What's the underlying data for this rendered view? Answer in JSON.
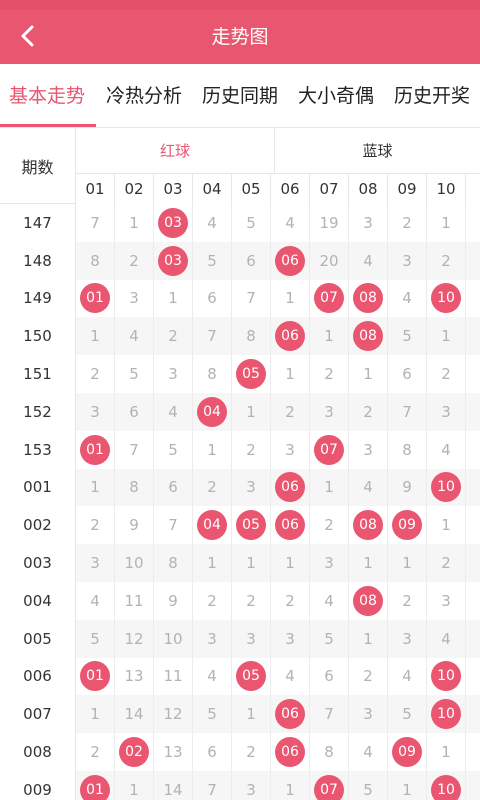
{
  "header": {
    "title": "走势图",
    "back_icon": "chevron-left-icon",
    "color": "#e8566f"
  },
  "tabs": [
    {
      "label": "基本走势",
      "active": true
    },
    {
      "label": "冷热分析",
      "active": false
    },
    {
      "label": "历史同期",
      "active": false
    },
    {
      "label": "大小奇偶",
      "active": false
    },
    {
      "label": "历史开奖",
      "active": false
    }
  ],
  "table": {
    "period_header": "期数",
    "red_group": "红球",
    "blue_group": "蓝球",
    "columns": [
      "01",
      "02",
      "03",
      "04",
      "05",
      "06",
      "07",
      "08",
      "09",
      "10"
    ],
    "rows": [
      {
        "period": "147",
        "cells": [
          "7",
          "1",
          "03",
          "4",
          "5",
          "4",
          "19",
          "3",
          "2",
          "1"
        ],
        "hits": [
          2
        ]
      },
      {
        "period": "148",
        "cells": [
          "8",
          "2",
          "03",
          "5",
          "6",
          "06",
          "20",
          "4",
          "3",
          "2"
        ],
        "hits": [
          2,
          5
        ]
      },
      {
        "period": "149",
        "cells": [
          "01",
          "3",
          "1",
          "6",
          "7",
          "1",
          "07",
          "08",
          "4",
          "10"
        ],
        "hits": [
          0,
          6,
          7,
          9
        ]
      },
      {
        "period": "150",
        "cells": [
          "1",
          "4",
          "2",
          "7",
          "8",
          "06",
          "1",
          "08",
          "5",
          "1"
        ],
        "hits": [
          5,
          7
        ]
      },
      {
        "period": "151",
        "cells": [
          "2",
          "5",
          "3",
          "8",
          "05",
          "1",
          "2",
          "1",
          "6",
          "2"
        ],
        "hits": [
          4
        ]
      },
      {
        "period": "152",
        "cells": [
          "3",
          "6",
          "4",
          "04",
          "1",
          "2",
          "3",
          "2",
          "7",
          "3"
        ],
        "hits": [
          3
        ]
      },
      {
        "period": "153",
        "cells": [
          "01",
          "7",
          "5",
          "1",
          "2",
          "3",
          "07",
          "3",
          "8",
          "4"
        ],
        "hits": [
          0,
          6
        ]
      },
      {
        "period": "001",
        "cells": [
          "1",
          "8",
          "6",
          "2",
          "3",
          "06",
          "1",
          "4",
          "9",
          "10"
        ],
        "hits": [
          5,
          9
        ]
      },
      {
        "period": "002",
        "cells": [
          "2",
          "9",
          "7",
          "04",
          "05",
          "06",
          "2",
          "08",
          "09",
          "1"
        ],
        "hits": [
          3,
          4,
          5,
          7,
          8
        ]
      },
      {
        "period": "003",
        "cells": [
          "3",
          "10",
          "8",
          "1",
          "1",
          "1",
          "3",
          "1",
          "1",
          "2"
        ],
        "hits": []
      },
      {
        "period": "004",
        "cells": [
          "4",
          "11",
          "9",
          "2",
          "2",
          "2",
          "4",
          "08",
          "2",
          "3"
        ],
        "hits": [
          7
        ]
      },
      {
        "period": "005",
        "cells": [
          "5",
          "12",
          "10",
          "3",
          "3",
          "3",
          "5",
          "1",
          "3",
          "4"
        ],
        "hits": []
      },
      {
        "period": "006",
        "cells": [
          "01",
          "13",
          "11",
          "4",
          "05",
          "4",
          "6",
          "2",
          "4",
          "10"
        ],
        "hits": [
          0,
          4,
          9
        ]
      },
      {
        "period": "007",
        "cells": [
          "1",
          "14",
          "12",
          "5",
          "1",
          "06",
          "7",
          "3",
          "5",
          "10"
        ],
        "hits": [
          5,
          9
        ]
      },
      {
        "period": "008",
        "cells": [
          "2",
          "02",
          "13",
          "6",
          "2",
          "06",
          "8",
          "4",
          "09",
          "1"
        ],
        "hits": [
          1,
          5,
          8
        ]
      },
      {
        "period": "009",
        "cells": [
          "01",
          "1",
          "14",
          "7",
          "3",
          "1",
          "07",
          "5",
          "1",
          "10"
        ],
        "hits": [
          0,
          6,
          9
        ]
      }
    ]
  }
}
